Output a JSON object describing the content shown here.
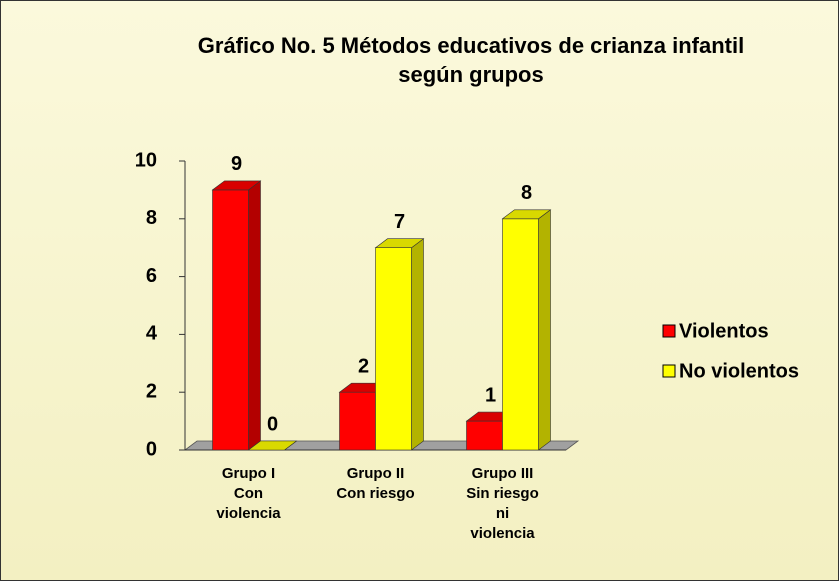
{
  "chart_data": {
    "type": "bar3d",
    "title": "Gráfico No. 5 Métodos educativos de crianza infantil\nsegún grupos",
    "categories": [
      "Grupo I\nCon\nviolencia",
      "Grupo II\nCon riesgo",
      "Grupo III\nSin riesgo\nni\nviolencia"
    ],
    "series": [
      {
        "name": "Violentos",
        "color": "#ff0000",
        "values": [
          9,
          2,
          1
        ]
      },
      {
        "name": "No violentos",
        "color": "#ffff00",
        "values": [
          0,
          7,
          8
        ]
      }
    ],
    "ylim": [
      0,
      10
    ],
    "yticks": [
      0,
      2,
      4,
      6,
      8,
      10
    ],
    "legend": "right"
  }
}
